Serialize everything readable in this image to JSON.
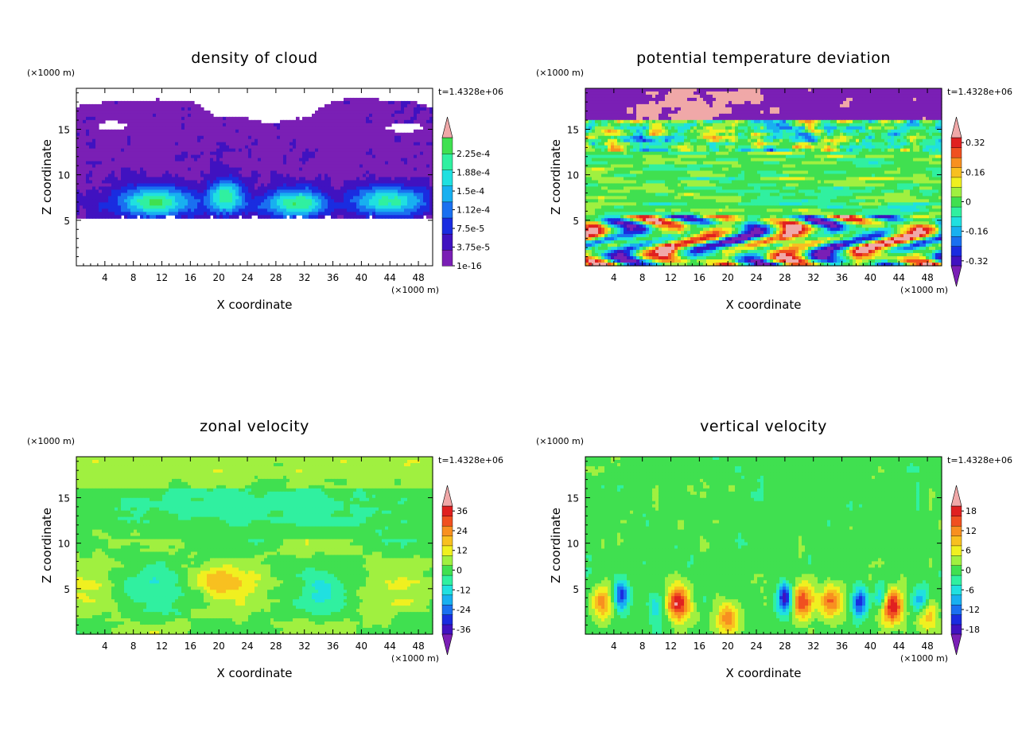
{
  "figure": {
    "time_label": "t=1.4328e+06",
    "axis_unit": "(×1000 m)"
  },
  "chart_data": [
    {
      "type": "heatmap",
      "title": "density of cloud",
      "xlabel": "X coordinate",
      "ylabel": "Z coordinate",
      "xunit": "(×1000 m)",
      "yunit": "(×1000 m)",
      "xlim": [
        0,
        50
      ],
      "ylim": [
        0,
        19.5
      ],
      "xticks": [
        4,
        8,
        12,
        16,
        20,
        24,
        28,
        32,
        36,
        40,
        44,
        48
      ],
      "yticks": [
        5,
        10,
        15
      ],
      "time": "t=1.4328e+06",
      "colorbar": {
        "labels": [
          "1e-16",
          "3.75e-5",
          "7.5e-5",
          "1.12e-4",
          "1.5e-4",
          "1.88e-4",
          "2.25e-4"
        ],
        "values": [
          1e-16,
          3.75e-05,
          7.5e-05,
          0.000112,
          0.00015,
          0.000188,
          0.000225
        ],
        "extend_min": false,
        "extend_max": true
      },
      "field": "cloud"
    },
    {
      "type": "heatmap",
      "title": "potential temperature deviation",
      "xlabel": "X coordinate",
      "ylabel": "Z coordinate",
      "xunit": "(×1000 m)",
      "yunit": "(×1000 m)",
      "xlim": [
        0,
        50
      ],
      "ylim": [
        0,
        19.5
      ],
      "xticks": [
        4,
        8,
        12,
        16,
        20,
        24,
        28,
        32,
        36,
        40,
        44,
        48
      ],
      "yticks": [
        5,
        10,
        15
      ],
      "time": "t=1.4328e+06",
      "colorbar": {
        "labels": [
          "-0.32",
          "-0.16",
          "0",
          "0.16",
          "0.32"
        ],
        "values": [
          -0.32,
          -0.16,
          0,
          0.16,
          0.32
        ],
        "extend_min": true,
        "extend_max": true
      },
      "field": "theta"
    },
    {
      "type": "heatmap",
      "title": "zonal velocity",
      "xlabel": "X coordinate",
      "ylabel": "Z coordinate",
      "xunit": "(×1000 m)",
      "yunit": "(×1000 m)",
      "xlim": [
        0,
        50
      ],
      "ylim": [
        0,
        19.5
      ],
      "xticks": [
        4,
        8,
        12,
        16,
        20,
        24,
        28,
        32,
        36,
        40,
        44,
        48
      ],
      "yticks": [
        5,
        10,
        15
      ],
      "time": "t=1.4328e+06",
      "colorbar": {
        "labels": [
          "-36",
          "-24",
          "-12",
          "0",
          "12",
          "24",
          "36"
        ],
        "values": [
          -36,
          -24,
          -12,
          0,
          12,
          24,
          36
        ],
        "extend_min": true,
        "extend_max": true
      },
      "field": "u"
    },
    {
      "type": "heatmap",
      "title": "vertical velocity",
      "xlabel": "X coordinate",
      "ylabel": "Z coordinate",
      "xunit": "(×1000 m)",
      "yunit": "(×1000 m)",
      "xlim": [
        0,
        50
      ],
      "ylim": [
        0,
        19.5
      ],
      "xticks": [
        4,
        8,
        12,
        16,
        20,
        24,
        28,
        32,
        36,
        40,
        44,
        48
      ],
      "yticks": [
        5,
        10,
        15
      ],
      "time": "t=1.4328e+06",
      "colorbar": {
        "labels": [
          "-18",
          "-12",
          "-6",
          "0",
          "6",
          "12",
          "18"
        ],
        "values": [
          -18,
          -12,
          -6,
          0,
          6,
          12,
          18
        ],
        "extend_min": true,
        "extend_max": true
      },
      "field": "w"
    }
  ],
  "colormap": [
    "#7a1fb5",
    "#4012c0",
    "#1a2ce0",
    "#1a70f0",
    "#18b0f0",
    "#20e0e0",
    "#30f0a0",
    "#40e050",
    "#a0f040",
    "#f0f020",
    "#f8c020",
    "#f89020",
    "#f05020",
    "#e02020",
    "#f0a8a8"
  ],
  "blank_color": "#ffffff"
}
